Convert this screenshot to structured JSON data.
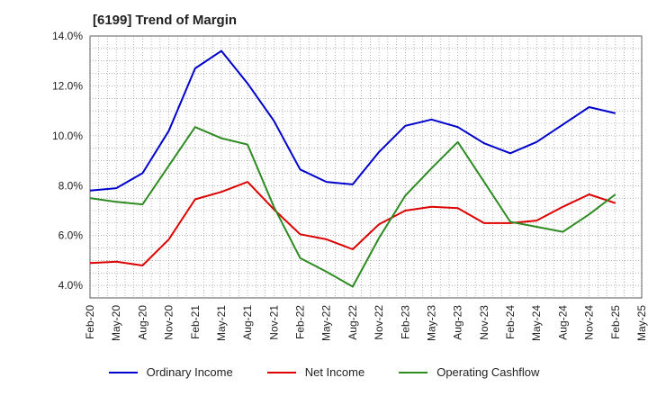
{
  "chart_data": {
    "type": "line",
    "title": "[6199]  Trend of Margin",
    "xlabel": "",
    "ylabel": "",
    "ylim": [
      3.5,
      14.0
    ],
    "yticks": [
      "4.0%",
      "6.0%",
      "8.0%",
      "10.0%",
      "12.0%",
      "14.0%"
    ],
    "ytick_values": [
      4,
      6,
      8,
      10,
      12,
      14
    ],
    "x_tick_labels": [
      "Feb-20",
      "May-20",
      "Aug-20",
      "Nov-20",
      "Feb-21",
      "May-21",
      "Aug-21",
      "Nov-21",
      "Feb-22",
      "May-22",
      "Aug-22",
      "Nov-22",
      "Feb-23",
      "May-23",
      "Aug-23",
      "Nov-23",
      "Feb-24",
      "May-24",
      "Aug-24",
      "Nov-24",
      "Feb-25",
      "May-25"
    ],
    "grid": true,
    "legend_position": "bottom",
    "series": [
      {
        "name": "Ordinary Income",
        "color": "#0000cc",
        "values": [
          7.8,
          7.9,
          8.5,
          10.2,
          12.7,
          13.4,
          12.1,
          10.6,
          8.65,
          8.15,
          8.05,
          9.35,
          10.4,
          10.65,
          10.35,
          9.7,
          9.3,
          9.75,
          10.45,
          11.15,
          10.9
        ]
      },
      {
        "name": "Net Income",
        "color": "#dd0000",
        "values": [
          4.9,
          4.95,
          4.8,
          5.85,
          7.45,
          7.75,
          8.15,
          7.05,
          6.05,
          5.85,
          5.45,
          6.45,
          7.0,
          7.15,
          7.1,
          6.5,
          6.5,
          6.6,
          7.15,
          7.65,
          7.3
        ]
      },
      {
        "name": "Operating Cashflow",
        "color": "#2e8b22",
        "values": [
          7.5,
          7.35,
          7.25,
          8.8,
          10.35,
          9.9,
          9.65,
          7.15,
          5.1,
          4.55,
          3.95,
          5.9,
          7.6,
          8.7,
          9.75,
          8.15,
          6.55,
          6.35,
          6.15,
          6.85,
          7.65
        ]
      }
    ]
  }
}
